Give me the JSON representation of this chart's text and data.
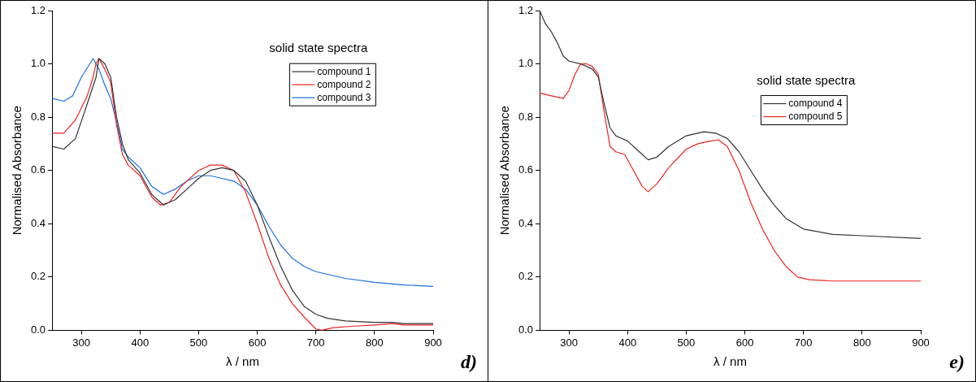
{
  "chart_data": [
    {
      "type": "line",
      "title": "solid state spectra",
      "xlabel": "λ / nm",
      "ylabel": "Normalised Absorbance",
      "xlim": [
        250,
        900
      ],
      "xticks": [
        300,
        400,
        500,
        600,
        700,
        800,
        900
      ],
      "ylim": [
        0,
        1.2
      ],
      "yticks": [
        {
          "value": 0,
          "label": "0.0"
        },
        {
          "value": 0.2,
          "label": "0.2"
        },
        {
          "value": 0.4,
          "label": "0.4"
        },
        {
          "value": 0.6,
          "label": "0.6"
        },
        {
          "value": 0.8,
          "label": "0.8"
        },
        {
          "value": 1,
          "label": "1.0"
        },
        {
          "value": 1.2,
          "label": "1.2"
        }
      ],
      "grid": false,
      "legend": "top right",
      "marker": "none",
      "line_style": "solid",
      "annotations": [
        "d)"
      ],
      "series": [
        {
          "name": "compound 1",
          "color": "#333333",
          "x": [
            250,
            270,
            290,
            310,
            325,
            330,
            340,
            350,
            360,
            370,
            380,
            400,
            420,
            440,
            460,
            480,
            500,
            520,
            540,
            560,
            580,
            600,
            620,
            640,
            660,
            680,
            700,
            720,
            750,
            800,
            830,
            850,
            900
          ],
          "values": [
            0.69,
            0.68,
            0.72,
            0.85,
            0.95,
            1.02,
            1.0,
            0.95,
            0.8,
            0.7,
            0.64,
            0.59,
            0.51,
            0.47,
            0.49,
            0.53,
            0.57,
            0.6,
            0.61,
            0.6,
            0.56,
            0.47,
            0.35,
            0.24,
            0.15,
            0.09,
            0.06,
            0.045,
            0.035,
            0.03,
            0.03,
            0.025,
            0.025
          ]
        },
        {
          "name": "compound 2",
          "color": "#ee2222",
          "x": [
            250,
            270,
            290,
            310,
            320,
            325,
            330,
            340,
            350,
            360,
            370,
            380,
            400,
            420,
            435,
            450,
            470,
            500,
            520,
            540,
            560,
            580,
            600,
            620,
            640,
            660,
            680,
            700,
            710,
            730,
            760,
            800,
            830,
            850,
            900
          ],
          "values": [
            0.74,
            0.74,
            0.79,
            0.88,
            0.95,
            1.0,
            1.02,
            0.98,
            0.93,
            0.77,
            0.66,
            0.62,
            0.58,
            0.5,
            0.47,
            0.48,
            0.54,
            0.6,
            0.62,
            0.62,
            0.6,
            0.52,
            0.4,
            0.27,
            0.17,
            0.1,
            0.05,
            0.005,
            0,
            0.01,
            0.015,
            0.02,
            0.025,
            0.02,
            0.02
          ]
        },
        {
          "name": "compound 3",
          "color": "#1a6fe0",
          "x": [
            250,
            270,
            285,
            300,
            320,
            330,
            340,
            350,
            360,
            370,
            380,
            400,
            420,
            440,
            460,
            480,
            500,
            520,
            540,
            560,
            580,
            600,
            620,
            640,
            660,
            680,
            700,
            750,
            800,
            850,
            900
          ],
          "values": [
            0.87,
            0.86,
            0.88,
            0.95,
            1.02,
            0.98,
            0.92,
            0.87,
            0.78,
            0.68,
            0.65,
            0.61,
            0.54,
            0.51,
            0.53,
            0.56,
            0.58,
            0.58,
            0.57,
            0.56,
            0.53,
            0.47,
            0.39,
            0.32,
            0.27,
            0.24,
            0.22,
            0.195,
            0.18,
            0.17,
            0.165
          ]
        }
      ]
    },
    {
      "type": "line",
      "title": "solid state spectra",
      "xlabel": "λ / nm",
      "ylabel": "Normalised Absorbance",
      "xlim": [
        250,
        900
      ],
      "xticks": [
        300,
        400,
        500,
        600,
        700,
        800,
        900
      ],
      "ylim": [
        0,
        1.2
      ],
      "yticks": [
        {
          "value": 0,
          "label": "0.0"
        },
        {
          "value": 0.2,
          "label": "0.2"
        },
        {
          "value": 0.4,
          "label": "0.4"
        },
        {
          "value": 0.6,
          "label": "0.6"
        },
        {
          "value": 0.8,
          "label": "0.8"
        },
        {
          "value": 1,
          "label": "1.0"
        },
        {
          "value": 1.2,
          "label": "1.2"
        }
      ],
      "grid": false,
      "legend": "top right",
      "marker": "none",
      "line_style": "solid",
      "annotations": [
        "e)"
      ],
      "series": [
        {
          "name": "compound 4",
          "color": "#333333",
          "x": [
            250,
            260,
            270,
            280,
            290,
            300,
            320,
            340,
            350,
            360,
            370,
            380,
            400,
            420,
            435,
            450,
            470,
            500,
            530,
            550,
            570,
            590,
            610,
            630,
            650,
            670,
            700,
            750,
            800,
            900
          ],
          "values": [
            1.2,
            1.15,
            1.12,
            1.08,
            1.03,
            1.01,
            1.0,
            0.98,
            0.95,
            0.85,
            0.76,
            0.73,
            0.71,
            0.67,
            0.64,
            0.65,
            0.69,
            0.73,
            0.745,
            0.74,
            0.72,
            0.67,
            0.6,
            0.53,
            0.47,
            0.42,
            0.38,
            0.36,
            0.355,
            0.345
          ]
        },
        {
          "name": "compound 5",
          "color": "#ee2222",
          "x": [
            250,
            270,
            290,
            300,
            310,
            320,
            330,
            340,
            350,
            360,
            370,
            380,
            395,
            410,
            425,
            435,
            450,
            470,
            500,
            520,
            540,
            555,
            570,
            590,
            610,
            630,
            650,
            670,
            690,
            710,
            750,
            800,
            900
          ],
          "values": [
            0.89,
            0.88,
            0.87,
            0.9,
            0.96,
            1.0,
            1.0,
            0.99,
            0.96,
            0.82,
            0.69,
            0.67,
            0.66,
            0.6,
            0.54,
            0.52,
            0.55,
            0.61,
            0.68,
            0.7,
            0.71,
            0.715,
            0.69,
            0.6,
            0.48,
            0.38,
            0.3,
            0.24,
            0.2,
            0.19,
            0.185,
            0.185,
            0.185
          ]
        }
      ]
    }
  ]
}
